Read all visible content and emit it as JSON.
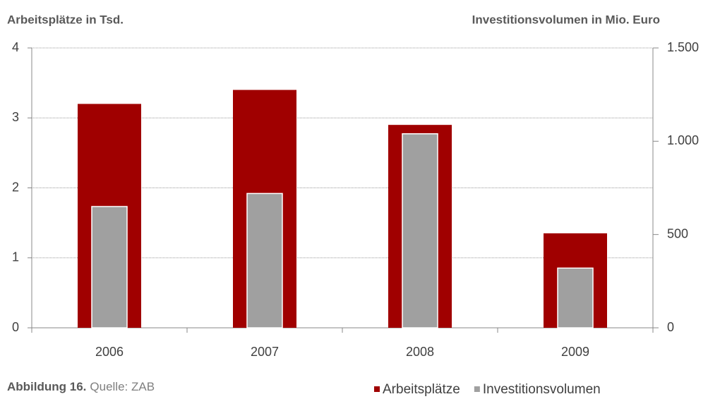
{
  "chart_data": {
    "type": "bar",
    "y_label": "Arbeitsplätze in Tsd.",
    "y2_label": "Investitionsvolumen in Mio. Euro",
    "categories": [
      "2006",
      "2007",
      "2008",
      "2009"
    ],
    "series": [
      {
        "name": "Arbeitsplätze",
        "color": "#a00000",
        "values": [
          3.2,
          3.4,
          2.9,
          1.35
        ]
      },
      {
        "name": "Investitionsvolumen",
        "color": "#a0a0a0",
        "axis": "y2",
        "values": [
          650,
          720,
          1040,
          320
        ]
      }
    ],
    "ylim": [
      0,
      4
    ],
    "yticks": [
      0,
      1,
      2,
      3,
      4
    ],
    "y2lim": [
      0,
      1500
    ],
    "y2ticks": [
      0,
      500,
      {
        "value": 1000,
        "label": "1.000"
      },
      {
        "value": 1500,
        "label": "1.500"
      }
    ],
    "grid": true,
    "legend": "bottom-right"
  },
  "footer": {
    "label": "Abbildung 16.",
    "source": "Quelle: ZAB"
  }
}
